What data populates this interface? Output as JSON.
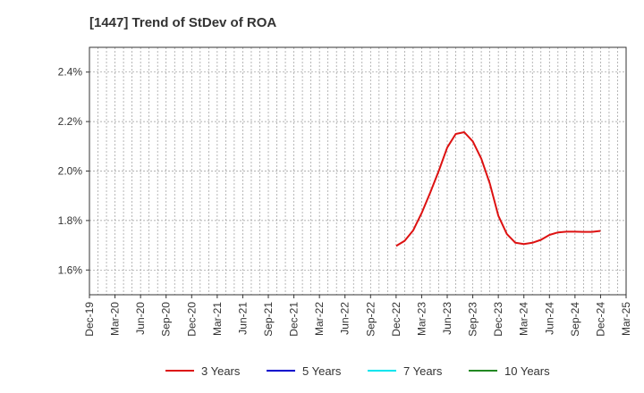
{
  "chart_data": {
    "type": "line",
    "title": "[1447]  Trend of StDev of ROA",
    "xlabel": "",
    "ylabel": "",
    "ylim": [
      1.5,
      2.5
    ],
    "yticks": [
      1.6,
      1.8,
      2.0,
      2.2,
      2.4
    ],
    "ytick_labels": [
      "1.6%",
      "1.8%",
      "2.0%",
      "2.2%",
      "2.4%"
    ],
    "x_categories": [
      "Dec-19",
      "Mar-20",
      "Jun-20",
      "Sep-20",
      "Dec-20",
      "Mar-21",
      "Jun-21",
      "Sep-21",
      "Dec-21",
      "Mar-22",
      "Jun-22",
      "Sep-22",
      "Dec-22",
      "Mar-23",
      "Jun-23",
      "Sep-23",
      "Dec-23",
      "Mar-24",
      "Jun-24",
      "Sep-24",
      "Dec-24",
      "Mar-25"
    ],
    "grid": true,
    "legend_position": "bottom",
    "series": [
      {
        "name": "3 Years",
        "color": "#dd1111",
        "points": [
          [
            "Dec-22",
            1.697
          ],
          [
            "Jan-23",
            1.718
          ],
          [
            "Feb-23",
            1.76
          ],
          [
            "Mar-23",
            1.83
          ],
          [
            "Apr-23",
            1.913
          ],
          [
            "May-23",
            2.0
          ],
          [
            "Jun-23",
            2.095
          ],
          [
            "Jul-23",
            2.15
          ],
          [
            "Aug-23",
            2.157
          ],
          [
            "Sep-23",
            2.12
          ],
          [
            "Oct-23",
            2.05
          ],
          [
            "Nov-23",
            1.95
          ],
          [
            "Dec-23",
            1.82
          ],
          [
            "Jan-24",
            1.745
          ],
          [
            "Feb-24",
            1.71
          ],
          [
            "Mar-24",
            1.705
          ],
          [
            "Apr-24",
            1.71
          ],
          [
            "May-24",
            1.722
          ],
          [
            "Jun-24",
            1.742
          ],
          [
            "Jul-24",
            1.752
          ],
          [
            "Aug-24",
            1.755
          ],
          [
            "Sep-24",
            1.755
          ],
          [
            "Oct-24",
            1.754
          ],
          [
            "Nov-24",
            1.754
          ],
          [
            "Dec-24",
            1.758
          ]
        ]
      },
      {
        "name": "5 Years",
        "color": "#0000cc",
        "points": []
      },
      {
        "name": "7 Years",
        "color": "#00e5ee",
        "points": []
      },
      {
        "name": "10 Years",
        "color": "#228822",
        "points": []
      }
    ]
  }
}
